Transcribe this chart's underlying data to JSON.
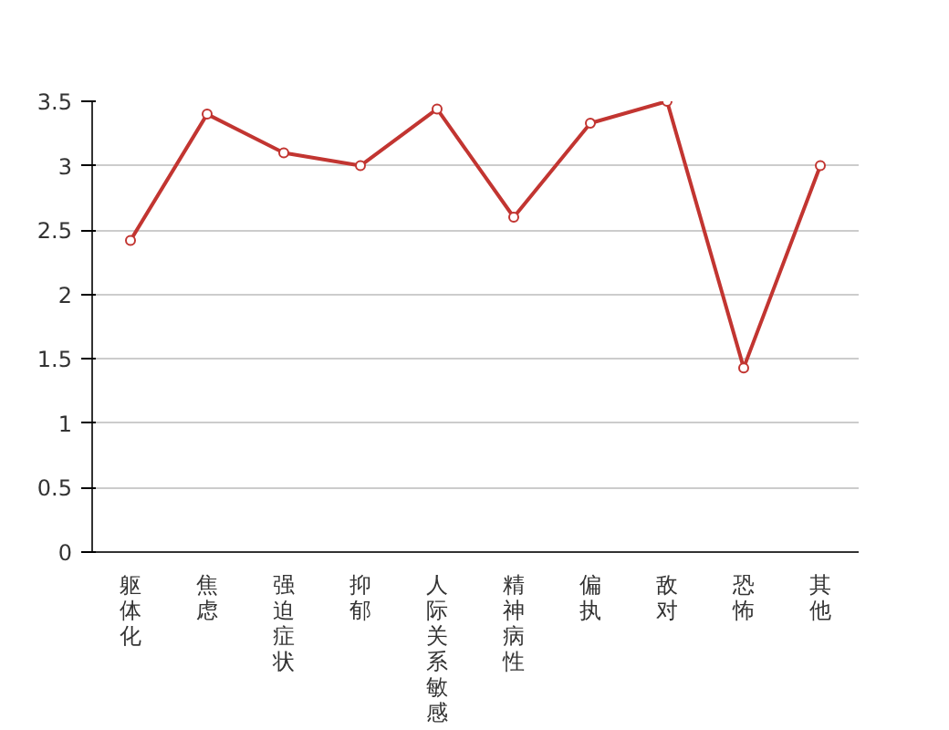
{
  "chart_data": {
    "type": "line",
    "categories": [
      "躯体化",
      "焦虑",
      "强迫症状",
      "抑郁",
      "人际关系敏感",
      "精神病性",
      "偏执",
      "敌对",
      "恐怖",
      "其他"
    ],
    "series": [
      {
        "color": "#c23531",
        "values": [
          2.42,
          3.4,
          3.1,
          3.0,
          3.44,
          2.6,
          3.33,
          3.5,
          1.43,
          3.0
        ]
      }
    ],
    "ylim": [
      0,
      3.5
    ],
    "yticks": [
      0,
      0.5,
      1,
      1.5,
      2,
      2.5,
      3,
      3.5
    ],
    "grid": "y",
    "marker": "circle",
    "line_style": "solid"
  }
}
